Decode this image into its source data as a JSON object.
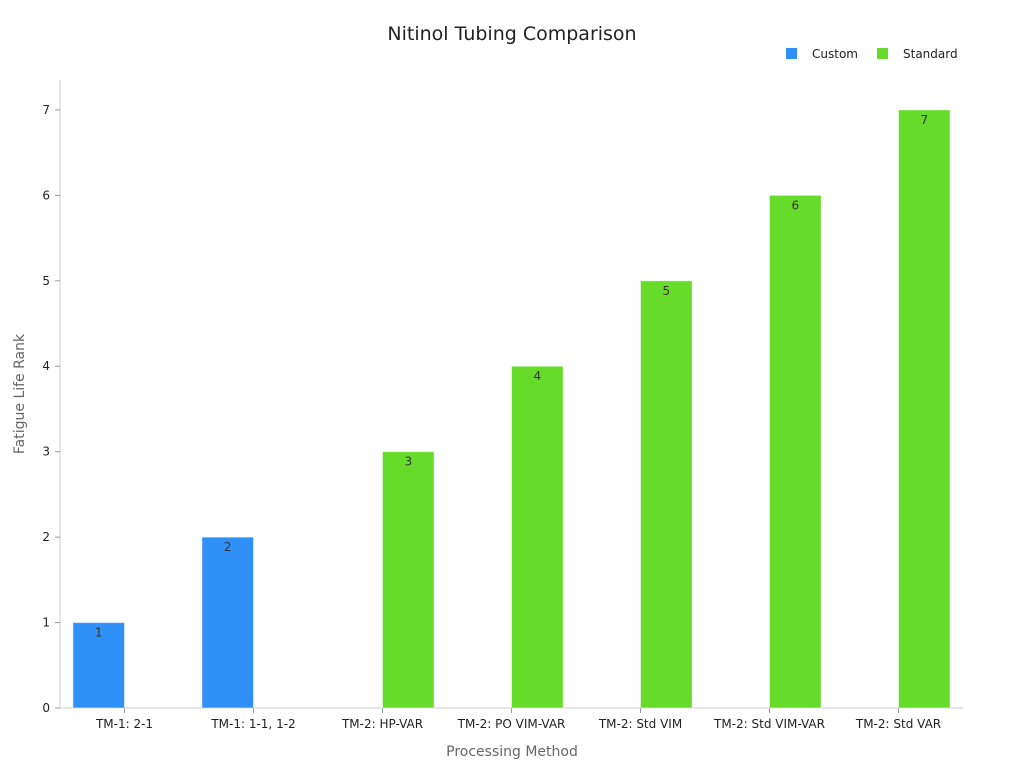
{
  "chart_data": {
    "type": "bar",
    "title": "Nitinol Tubing Comparison",
    "xlabel": "Processing Method",
    "ylabel": "Fatigue Life Rank",
    "ylim": [
      0,
      7.35
    ],
    "yticks": [
      0,
      1,
      2,
      3,
      4,
      5,
      6,
      7
    ],
    "grid": false,
    "legend_position": "top-right",
    "categories": [
      "TM-1: 2-1",
      "TM-1: 1-1, 1-2",
      "TM-2: HP-VAR",
      "TM-2: PO VIM-VAR",
      "TM-2: Std VIM",
      "TM-2: Std VIM-VAR",
      "TM-2: Std VAR"
    ],
    "series": [
      {
        "name": "Custom",
        "color": "#2f91f8",
        "values": [
          1,
          2,
          null,
          null,
          null,
          null,
          null
        ]
      },
      {
        "name": "Standard",
        "color": "#67db29",
        "values": [
          null,
          null,
          3,
          4,
          5,
          6,
          7
        ]
      }
    ]
  }
}
